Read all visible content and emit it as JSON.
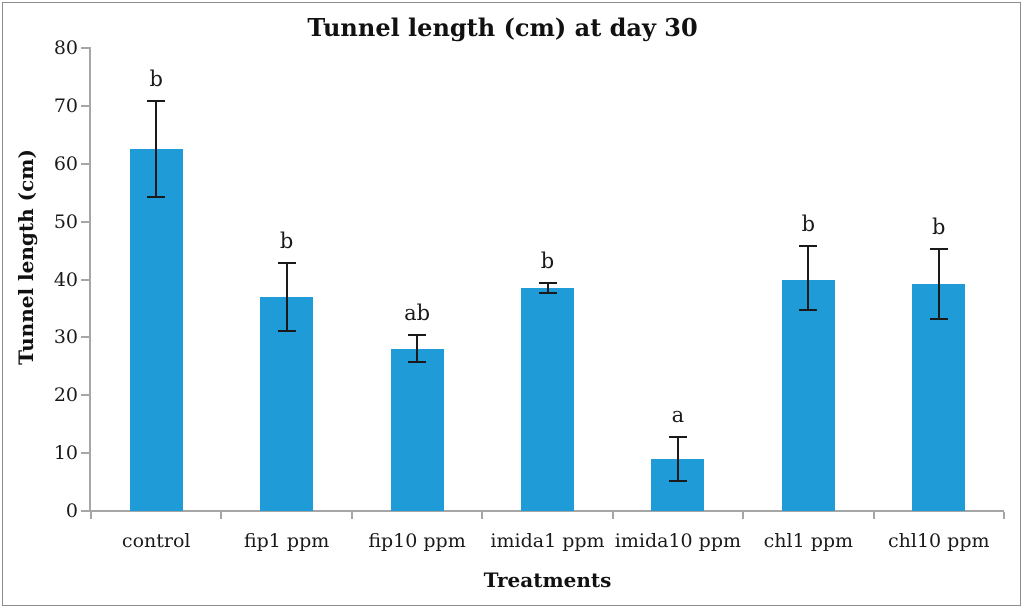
{
  "chart_data": {
    "type": "bar",
    "title": "Tunnel length (cm) at day 30",
    "xlabel": "Treatments",
    "ylabel": "Tunnel length (cm)",
    "ylim": [
      0,
      80
    ],
    "ytick_step": 10,
    "ytick_labels": [
      "0",
      "10",
      "20",
      "30",
      "40",
      "50",
      "60",
      "70",
      "80"
    ],
    "grid": false,
    "legend_position": "none",
    "categories": [
      "control",
      "fip1 ppm",
      "fip10 ppm",
      "imida1 ppm",
      "imida10 ppm",
      "chl1 ppm",
      "chl10 ppm"
    ],
    "series": [
      {
        "name": "Tunnel length (cm)",
        "values": [
          62.5,
          37,
          28,
          38.5,
          9,
          40,
          39.3
        ],
        "error_high": [
          71,
          43,
          30.5,
          39.5,
          13,
          46,
          45.5
        ],
        "error_low": [
          54,
          31,
          25.5,
          37.5,
          5,
          34.5,
          33
        ],
        "sig_letters": [
          "b",
          "b",
          "ab",
          "b",
          "a",
          "b",
          "b"
        ]
      }
    ],
    "colors": {
      "bar": "#1F9CD8",
      "axis": "#a6a6a6",
      "error_bar": "#1a1a1a",
      "text": "#1a1a1a",
      "border": "#8c8c8c"
    }
  }
}
